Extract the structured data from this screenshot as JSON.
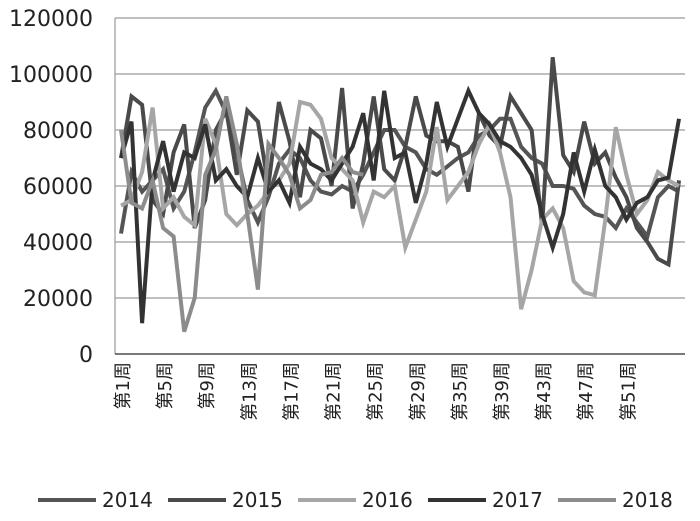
{
  "chart_data": {
    "type": "line",
    "ylim": [
      0,
      120000
    ],
    "y_ticks": [
      0,
      20000,
      40000,
      60000,
      80000,
      100000,
      120000
    ],
    "x_tick_labels": [
      "第1周",
      "第5周",
      "第9周",
      "第13周",
      "第17周",
      "第21周",
      "第25周",
      "第29周",
      "第35周",
      "第39周",
      "第43周",
      "第47周",
      "第51周"
    ],
    "grid": "horizontal",
    "legend_position": "bottom",
    "series": [
      {
        "name": "2014",
        "color": "#555555",
        "values": [
          43000,
          65000,
          58000,
          62000,
          66000,
          52000,
          58000,
          72000,
          88000,
          94000,
          86000,
          72000,
          55000,
          47000,
          56000,
          68000,
          73000,
          70000,
          62000,
          58000,
          57000,
          60000,
          58000,
          64000,
          72000,
          80000,
          80000,
          74000,
          72000,
          66000,
          64000,
          67000,
          70000,
          72000,
          78000,
          80000,
          84000,
          84000,
          74000,
          70000,
          68000,
          60000,
          60000,
          59000,
          53000,
          50000,
          49000,
          45000,
          52000,
          47000,
          42000,
          56000,
          60000,
          58000
        ]
      },
      {
        "name": "2015",
        "color": "#4a4a4a",
        "values": [
          70000,
          92000,
          89000,
          55000,
          50000,
          72000,
          82000,
          45000,
          55000,
          80000,
          87000,
          64000,
          87000,
          83000,
          60000,
          90000,
          76000,
          56000,
          80000,
          77000,
          60000,
          95000,
          52000,
          68000,
          92000,
          66000,
          62000,
          74000,
          92000,
          78000,
          76000,
          76000,
          74000,
          58000,
          86000,
          78000,
          74000,
          92000,
          86000,
          80000,
          46000,
          106000,
          71000,
          65000,
          83000,
          68000,
          72000,
          63000,
          56000,
          45000,
          40000,
          34000,
          32000,
          62000
        ]
      },
      {
        "name": "2016",
        "color": "#a6a6a6",
        "values": [
          53000,
          55000,
          65000,
          88000,
          52000,
          56000,
          49000,
          46000,
          84000,
          75000,
          50000,
          46000,
          50000,
          53000,
          58000,
          62000,
          68000,
          90000,
          89000,
          84000,
          70000,
          66000,
          62000,
          47000,
          58000,
          56000,
          60000,
          38000,
          48000,
          58000,
          81000,
          55000,
          60000,
          65000,
          75000,
          82000,
          72000,
          56000,
          16000,
          30000,
          48000,
          52000,
          45000,
          26000,
          22000,
          21000,
          48000,
          81000,
          64000,
          50000,
          55000,
          65000,
          62000,
          60000
        ]
      },
      {
        "name": "2017",
        "color": "#333333",
        "values": [
          70000,
          83000,
          11000,
          62000,
          76000,
          58000,
          72000,
          70000,
          82000,
          62000,
          66000,
          60000,
          56000,
          70000,
          58000,
          62000,
          54000,
          74000,
          68000,
          66000,
          62000,
          68000,
          74000,
          86000,
          62000,
          94000,
          70000,
          72000,
          54000,
          68000,
          90000,
          74000,
          84000,
          94000,
          86000,
          82000,
          76000,
          74000,
          70000,
          64000,
          50000,
          38000,
          50000,
          72000,
          58000,
          73000,
          60000,
          56000,
          48000,
          54000,
          56000,
          62000,
          63000,
          84000
        ]
      },
      {
        "name": "2018",
        "color": "#8c8c8c",
        "values": [
          80000,
          54000,
          52000,
          62000,
          45000,
          42000,
          8000,
          20000,
          64000,
          73000,
          92000,
          75000,
          50000,
          23000,
          75000,
          70000,
          64000,
          52000,
          55000,
          64000,
          65000,
          70000,
          65000,
          64000
        ]
      }
    ]
  }
}
